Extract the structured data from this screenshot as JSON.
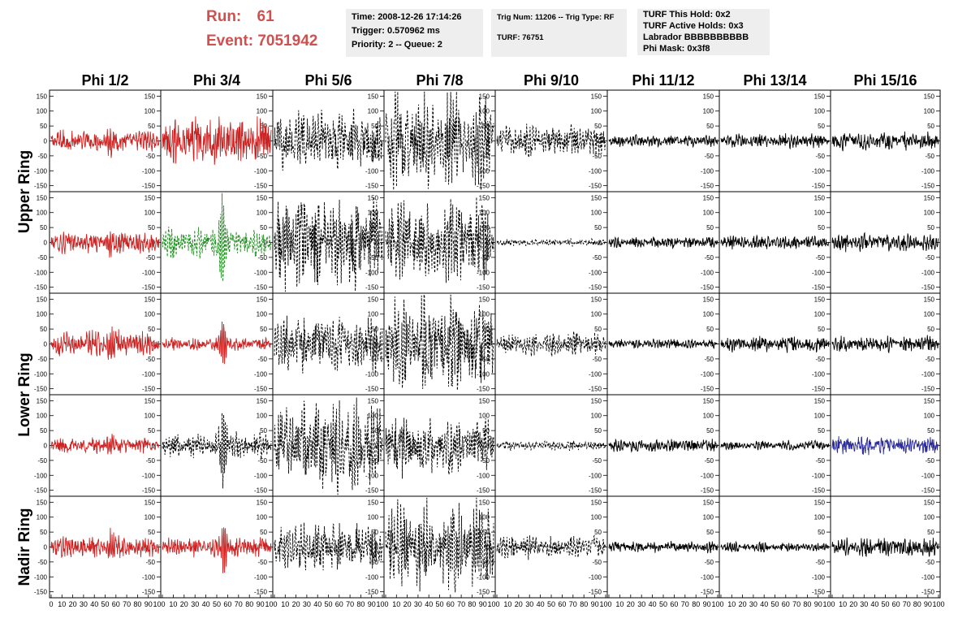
{
  "header": {
    "run_label": "Run:",
    "run_value": "61",
    "event_label": "Event:",
    "event_value": "7051942",
    "time": "Time: 2008-12-26 17:14:26",
    "trigger": "Trigger: 0.570962 ms",
    "priority": "Priority: 2 -- Queue: 2",
    "trig_num": "Trig Num: 11206 -- Trig Type: RF",
    "turf": "TURF: 76751",
    "turf_hold": "TURF This Hold: 0x2",
    "turf_active": "TURF Active Holds: 0x3",
    "labrador": "Labrador BBBBBBBBBB",
    "phi_mask": "Phi Mask: 0x3f8"
  },
  "colors": {
    "red": "#cc2222",
    "green": "#1a8a1a",
    "blue": "#2a2a99",
    "black": "#000000",
    "header_red": "#d05050",
    "box_bg": "#eeeeee"
  },
  "chart_data": {
    "type": "line",
    "columns": [
      "Phi 1/2",
      "Phi 3/4",
      "Phi 5/6",
      "Phi 7/8",
      "Phi 9/10",
      "Phi 11/12",
      "Phi 13/14",
      "Phi 15/16"
    ],
    "rows": [
      "Upper Ring",
      "Upper Ring",
      "Lower Ring",
      "Lower Ring",
      "Nadir Ring"
    ],
    "row_labels": [
      "Upper Ring",
      "Lower Ring",
      "Nadir Ring"
    ],
    "xlim": [
      0,
      100
    ],
    "ylim": [
      -170,
      170
    ],
    "y_ticks": [
      -150,
      -100,
      -50,
      0,
      50,
      100,
      150
    ],
    "x_ticks": [
      0,
      10,
      20,
      30,
      40,
      50,
      60,
      70,
      80,
      90,
      100
    ],
    "x_tick_labels": [
      "0",
      "10",
      "20",
      "30",
      "40",
      "50",
      "60",
      "70",
      "80",
      "90",
      "100"
    ],
    "y_tick_labels_first_column": [
      "150",
      "100",
      "50",
      "0",
      "-50",
      "-100",
      "-150"
    ],
    "panels": [
      [
        {
          "color": "red",
          "style": "solid",
          "amp": 35,
          "burst": 45
        },
        {
          "color": "red",
          "style": "solid",
          "amp": 75,
          "burst": 0
        },
        {
          "color": "black",
          "style": "dashed",
          "amp": 95,
          "burst": 0
        },
        {
          "color": "black",
          "style": "dashed",
          "amp": 150,
          "burst": 0
        },
        {
          "color": "black",
          "style": "dashed",
          "amp": 50,
          "burst": 0
        },
        {
          "color": "black",
          "style": "solid",
          "amp": 18,
          "burst": 0
        },
        {
          "color": "black",
          "style": "solid",
          "amp": 22,
          "burst": 0
        },
        {
          "color": "black",
          "style": "solid",
          "amp": 28,
          "burst": 0
        }
      ],
      [
        {
          "color": "red",
          "style": "solid",
          "amp": 35,
          "burst": 45
        },
        {
          "color": "green",
          "style": "dashed",
          "amp": 50,
          "burst": 150
        },
        {
          "color": "black",
          "style": "dashed",
          "amp": 145,
          "burst": 0
        },
        {
          "color": "black",
          "style": "dashed",
          "amp": 130,
          "burst": 0
        },
        {
          "color": "black",
          "style": "dashed",
          "amp": 12,
          "burst": 0
        },
        {
          "color": "black",
          "style": "solid",
          "amp": 18,
          "burst": 0
        },
        {
          "color": "black",
          "style": "solid",
          "amp": 22,
          "burst": 0
        },
        {
          "color": "black",
          "style": "solid",
          "amp": 28,
          "burst": 0
        }
      ],
      [
        {
          "color": "red",
          "style": "solid",
          "amp": 40,
          "burst": 55
        },
        {
          "color": "red",
          "style": "solid",
          "amp": 20,
          "burst": 80
        },
        {
          "color": "black",
          "style": "dashed",
          "amp": 90,
          "burst": 0
        },
        {
          "color": "black",
          "style": "dashed",
          "amp": 145,
          "burst": 0
        },
        {
          "color": "black",
          "style": "dashed",
          "amp": 35,
          "burst": 0
        },
        {
          "color": "black",
          "style": "solid",
          "amp": 15,
          "burst": 0
        },
        {
          "color": "black",
          "style": "solid",
          "amp": 25,
          "burst": 0
        },
        {
          "color": "black",
          "style": "solid",
          "amp": 25,
          "burst": 0
        }
      ],
      [
        {
          "color": "red",
          "style": "solid",
          "amp": 25,
          "burst": 40
        },
        {
          "color": "black",
          "style": "dashed",
          "amp": 40,
          "burst": 130
        },
        {
          "color": "black",
          "style": "dashed",
          "amp": 145,
          "burst": 0
        },
        {
          "color": "black",
          "style": "dashed",
          "amp": 95,
          "burst": 0
        },
        {
          "color": "black",
          "style": "dashed",
          "amp": 15,
          "burst": 0
        },
        {
          "color": "black",
          "style": "solid",
          "amp": 20,
          "burst": 0
        },
        {
          "color": "black",
          "style": "solid",
          "amp": 15,
          "burst": 0
        },
        {
          "color": "blue",
          "style": "solid",
          "amp": 30,
          "burst": 0
        }
      ],
      [
        {
          "color": "red",
          "style": "solid",
          "amp": 35,
          "burst": 45
        },
        {
          "color": "red",
          "style": "solid",
          "amp": 30,
          "burst": 90
        },
        {
          "color": "black",
          "style": "dashed",
          "amp": 75,
          "burst": 0
        },
        {
          "color": "black",
          "style": "dashed",
          "amp": 145,
          "burst": 0
        },
        {
          "color": "black",
          "style": "dashed",
          "amp": 35,
          "burst": 0
        },
        {
          "color": "black",
          "style": "solid",
          "amp": 18,
          "burst": 0
        },
        {
          "color": "black",
          "style": "solid",
          "amp": 15,
          "burst": 0
        },
        {
          "color": "black",
          "style": "solid",
          "amp": 30,
          "burst": 0
        }
      ]
    ]
  }
}
